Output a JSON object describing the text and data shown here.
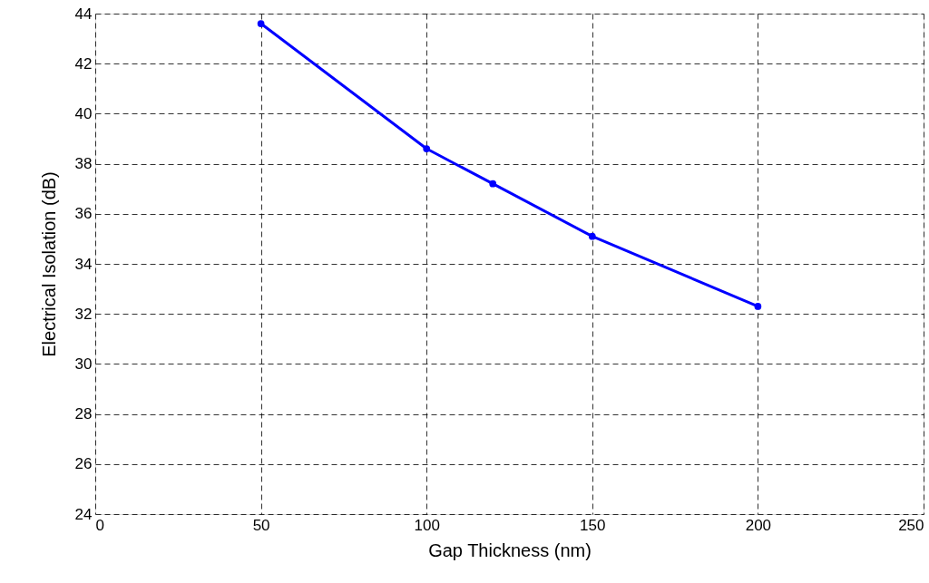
{
  "chart_data": {
    "type": "line",
    "xlabel": "Gap Thickness (nm)",
    "ylabel": "Electrical Isolation (dB)",
    "x": [
      50,
      100,
      120,
      150,
      200
    ],
    "series": [
      {
        "color": "#0000ff",
        "values": [
          43.6,
          38.6,
          37.2,
          35.1,
          32.3
        ]
      }
    ],
    "xlim": [
      0,
      250
    ],
    "xticks": [
      0,
      50,
      100,
      150,
      200,
      250
    ],
    "ylim": [
      24,
      44
    ],
    "yticks": [
      24,
      26,
      28,
      30,
      32,
      34,
      36,
      38,
      40,
      42,
      44
    ],
    "grid": true,
    "marker": "circle",
    "line_style": "solid"
  }
}
